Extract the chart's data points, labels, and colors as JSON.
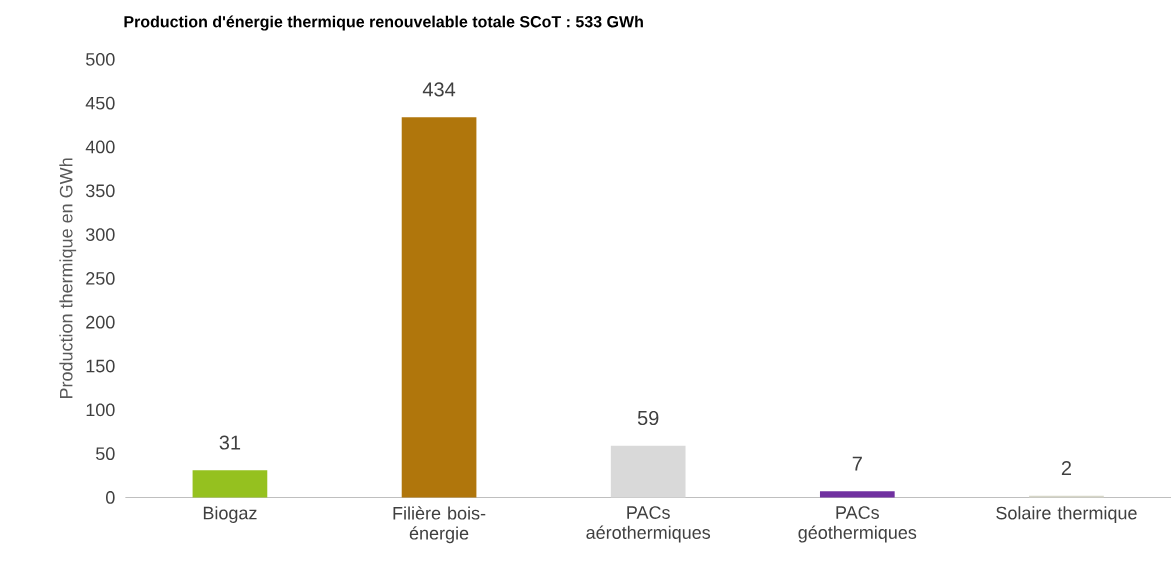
{
  "chart_data": {
    "type": "bar",
    "title": "Production d'énergie thermique renouvelable totale SCoT : 533 GWh",
    "ylabel": "Production thermique en GWh",
    "categories": [
      "Biogaz",
      "Filière bois-énergie",
      "PACs aérothermiques",
      "PACs géothermiques",
      "Solaire thermique"
    ],
    "values": [
      31,
      434,
      59,
      7,
      2
    ],
    "colors": [
      "#95c11f",
      "#b0760c",
      "#d9d9d9",
      "#7030a0",
      "#d6d6c8"
    ],
    "ylim": [
      0,
      500
    ],
    "yticks": [
      0,
      50,
      100,
      150,
      200,
      250,
      300,
      350,
      400,
      450,
      500
    ],
    "data_labels": true,
    "grid": false
  }
}
